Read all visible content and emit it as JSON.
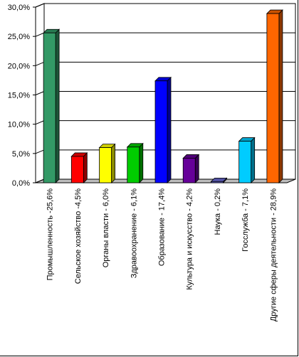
{
  "chart_data": {
    "type": "bar",
    "categories": [
      "Промышленность -25,6%",
      "Сельское хозяйство -4,5%",
      "Органы власти - 6,0%",
      "Здравоохранение - 6,1%",
      "Образование - 17,4%",
      "Культура и искусство - 4,2%",
      "Наука - 0,2%",
      "Госслужба - 7,1%",
      "Другие сферы деятельности - 28,9%"
    ],
    "values": [
      25.6,
      4.5,
      6.0,
      6.1,
      17.4,
      4.2,
      0.2,
      7.1,
      28.9
    ],
    "colors": [
      "#339966",
      "#ff0000",
      "#ffff00",
      "#00cc00",
      "#0000ff",
      "#660099",
      "#6666cc",
      "#00ccff",
      "#ff6600"
    ],
    "ylim": [
      0,
      30
    ],
    "yticks": [
      "0,0%",
      "5,0%",
      "10,0%",
      "15,0%",
      "20,0%",
      "25,0%",
      "30,0%"
    ],
    "grid": true,
    "style": "3d",
    "title": "",
    "xlabel": "",
    "ylabel": ""
  }
}
